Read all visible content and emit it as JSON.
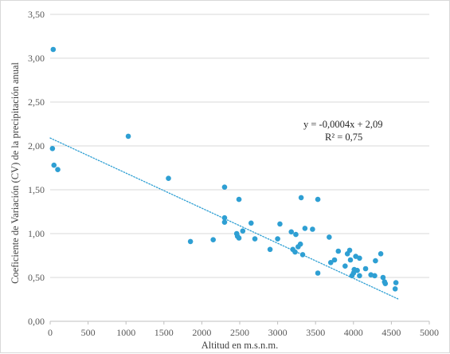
{
  "chart_data": {
    "type": "scatter",
    "title": "",
    "xlabel": "Altitud en m.s.n.m.",
    "ylabel": "Coeficiente de Variación (CV) de la precipitación anual",
    "xlim": [
      0,
      5000
    ],
    "ylim": [
      0,
      3.5
    ],
    "x_ticks": [
      "0",
      "500",
      "1000",
      "1500",
      "2000",
      "2500",
      "3000",
      "3500",
      "4000",
      "4500",
      "5000"
    ],
    "y_ticks": [
      "0,00",
      "0,50",
      "1,00",
      "1,50",
      "2,00",
      "2,50",
      "3,00",
      "3,50"
    ],
    "gridlines": "horizontal",
    "marker_color": "#2e9fd3",
    "trendline": {
      "type": "linear",
      "slope": -0.0004,
      "intercept": 2.09,
      "x_range": [
        0,
        4600
      ],
      "style": "dotted",
      "color": "#2e9fd3",
      "equation_label": "y = -0,0004x + 2,09",
      "r2_label": "R² = 0,75"
    },
    "points": [
      {
        "x": 40,
        "y": 3.1
      },
      {
        "x": 30,
        "y": 1.97
      },
      {
        "x": 50,
        "y": 1.78
      },
      {
        "x": 100,
        "y": 1.73
      },
      {
        "x": 1030,
        "y": 2.11
      },
      {
        "x": 1560,
        "y": 1.63
      },
      {
        "x": 1850,
        "y": 0.91
      },
      {
        "x": 2150,
        "y": 0.93
      },
      {
        "x": 2300,
        "y": 1.53
      },
      {
        "x": 2300,
        "y": 1.18
      },
      {
        "x": 2300,
        "y": 1.13
      },
      {
        "x": 2490,
        "y": 1.39
      },
      {
        "x": 2460,
        "y": 1.0
      },
      {
        "x": 2490,
        "y": 0.95
      },
      {
        "x": 2470,
        "y": 0.97
      },
      {
        "x": 2540,
        "y": 1.03
      },
      {
        "x": 2650,
        "y": 1.12
      },
      {
        "x": 2700,
        "y": 0.94
      },
      {
        "x": 2900,
        "y": 0.82
      },
      {
        "x": 3000,
        "y": 0.94
      },
      {
        "x": 3030,
        "y": 1.11
      },
      {
        "x": 3180,
        "y": 1.02
      },
      {
        "x": 3240,
        "y": 0.99
      },
      {
        "x": 3200,
        "y": 0.82
      },
      {
        "x": 3230,
        "y": 0.79
      },
      {
        "x": 3270,
        "y": 0.85
      },
      {
        "x": 3300,
        "y": 0.88
      },
      {
        "x": 3310,
        "y": 1.41
      },
      {
        "x": 3330,
        "y": 0.76
      },
      {
        "x": 3360,
        "y": 1.06
      },
      {
        "x": 3460,
        "y": 1.05
      },
      {
        "x": 3530,
        "y": 1.39
      },
      {
        "x": 3530,
        "y": 0.55
      },
      {
        "x": 3680,
        "y": 0.96
      },
      {
        "x": 3700,
        "y": 0.67
      },
      {
        "x": 3750,
        "y": 0.7
      },
      {
        "x": 3800,
        "y": 0.8
      },
      {
        "x": 3890,
        "y": 0.63
      },
      {
        "x": 3920,
        "y": 0.77
      },
      {
        "x": 3950,
        "y": 0.81
      },
      {
        "x": 3960,
        "y": 0.7
      },
      {
        "x": 3980,
        "y": 0.52
      },
      {
        "x": 4000,
        "y": 0.55
      },
      {
        "x": 4010,
        "y": 0.59
      },
      {
        "x": 4030,
        "y": 0.74
      },
      {
        "x": 4050,
        "y": 0.58
      },
      {
        "x": 4080,
        "y": 0.72
      },
      {
        "x": 4080,
        "y": 0.52
      },
      {
        "x": 4160,
        "y": 0.6
      },
      {
        "x": 4230,
        "y": 0.53
      },
      {
        "x": 4280,
        "y": 0.52
      },
      {
        "x": 4290,
        "y": 0.69
      },
      {
        "x": 4360,
        "y": 0.77
      },
      {
        "x": 4390,
        "y": 0.5
      },
      {
        "x": 4410,
        "y": 0.45
      },
      {
        "x": 4420,
        "y": 0.43
      },
      {
        "x": 4550,
        "y": 0.37
      },
      {
        "x": 4560,
        "y": 0.44
      }
    ]
  }
}
